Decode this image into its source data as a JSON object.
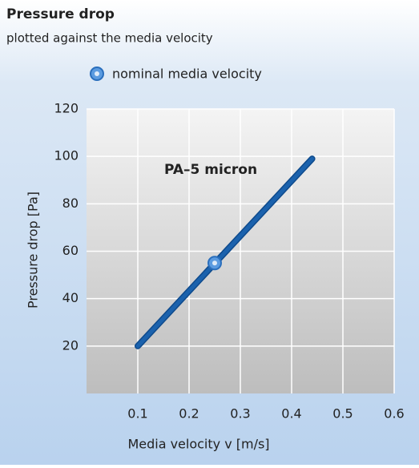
{
  "chart_data": {
    "type": "line",
    "title": "Pressure drop",
    "subtitle": "plotted against the media velocity",
    "annotation": "PA–5 micron",
    "xlabel": "Media velocity v [m/s]",
    "ylabel": "Pressure drop [Pa]",
    "series": [
      {
        "name": "PA–5 micron",
        "color": "#1b62ad",
        "x": [
          0.1,
          0.44
        ],
        "values": [
          20,
          99
        ]
      },
      {
        "name": "nominal media velocity",
        "color": "#5b9be0",
        "x": [
          0.25
        ],
        "values": [
          55
        ],
        "marker": true
      }
    ],
    "xlim": [
      0,
      0.6
    ],
    "xticks": [
      0.1,
      0.2,
      0.3,
      0.4,
      0.5,
      0.6
    ],
    "ylim": [
      0,
      120
    ],
    "yticks": [
      20,
      40,
      60,
      80,
      100,
      120
    ],
    "grid": true
  }
}
